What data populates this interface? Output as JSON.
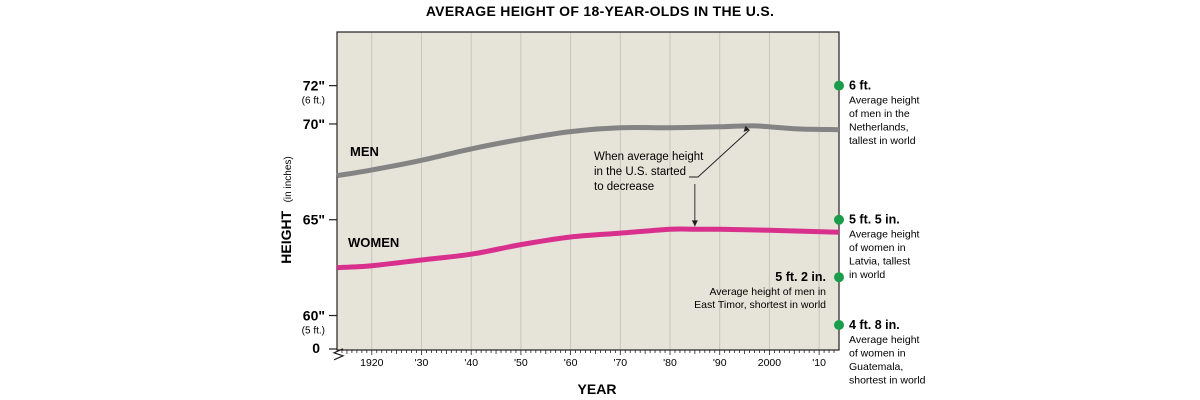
{
  "chart_data": {
    "type": "line",
    "title": "AVERAGE HEIGHT OF 18-YEAR-OLDS IN THE U.S.",
    "xlabel": "YEAR",
    "ylabel": "HEIGHT",
    "ylabel_unit": "(in inches)",
    "xlim": [
      1913,
      2014
    ],
    "ylim_broken": {
      "baseline": 0,
      "visible_range": [
        58.2,
        74.8
      ]
    },
    "x_ticks": [
      {
        "value": 1920,
        "label": "1920"
      },
      {
        "value": 1930,
        "label": "'30"
      },
      {
        "value": 1940,
        "label": "'40"
      },
      {
        "value": 1950,
        "label": "'50"
      },
      {
        "value": 1960,
        "label": "'60"
      },
      {
        "value": 1970,
        "label": "'70"
      },
      {
        "value": 1980,
        "label": "'80"
      },
      {
        "value": 1990,
        "label": "'90"
      },
      {
        "value": 2000,
        "label": "2000"
      },
      {
        "value": 2010,
        "label": "'10"
      }
    ],
    "y_ticks": [
      {
        "value": 72,
        "label": "72\"",
        "sublabel": "(6 ft.)"
      },
      {
        "value": 70,
        "label": "70\"",
        "sublabel": ""
      },
      {
        "value": 65,
        "label": "65\"",
        "sublabel": ""
      },
      {
        "value": 60,
        "label": "60\"",
        "sublabel": "(5 ft.)"
      }
    ],
    "zero_label": "0",
    "series": [
      {
        "name": "MEN",
        "color": "#848484",
        "x": [
          1913,
          1920,
          1930,
          1940,
          1950,
          1960,
          1970,
          1980,
          1990,
          1997,
          2005,
          2014
        ],
        "values": [
          67.3,
          67.6,
          68.1,
          68.7,
          69.2,
          69.6,
          69.8,
          69.8,
          69.85,
          69.9,
          69.75,
          69.7
        ]
      },
      {
        "name": "WOMEN",
        "color": "#d9308e",
        "x": [
          1913,
          1920,
          1930,
          1940,
          1950,
          1960,
          1970,
          1980,
          1985,
          1990,
          2000,
          2014
        ],
        "values": [
          62.5,
          62.6,
          62.9,
          63.2,
          63.7,
          64.1,
          64.3,
          64.5,
          64.5,
          64.5,
          64.45,
          64.35
        ]
      }
    ],
    "annotation": {
      "lines": [
        "When average height",
        "in the U.S. started",
        "to decrease"
      ],
      "arrow_targets": [
        {
          "series": "MEN",
          "x": 1996,
          "y": 69.9
        },
        {
          "series": "WOMEN",
          "x": 1985,
          "y": 64.5
        }
      ]
    },
    "reference_points": [
      {
        "value": 72,
        "color": "#1a9c4a",
        "side": "right",
        "head": "6 ft.",
        "desc": [
          "Average height",
          "of men in the",
          "Netherlands,",
          "tallest in world"
        ]
      },
      {
        "value": 65,
        "color": "#1a9c4a",
        "side": "right",
        "head": "5 ft. 5 in.",
        "desc": [
          "Average height",
          "of women in",
          "Latvia, tallest",
          "in world"
        ]
      },
      {
        "value": 62,
        "color": "#1a9c4a",
        "side": "left",
        "head": "5 ft. 2 in.",
        "desc": [
          "Average height of men in",
          "East Timor, shortest in world"
        ]
      },
      {
        "value": 56,
        "color": "#1a9c4a",
        "side": "right",
        "head": "4 ft. 8 in.",
        "desc": [
          "Average height",
          "of women in",
          "Guatemala,",
          "shortest in world"
        ]
      }
    ],
    "colors": {
      "plot_background": "#e6e3d9",
      "grid": "#c8c5bc"
    },
    "grid": "vertical",
    "legend": "inline-labels"
  }
}
